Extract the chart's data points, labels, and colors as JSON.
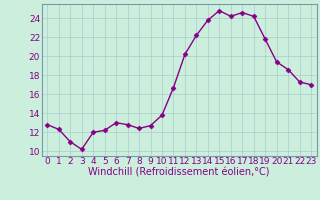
{
  "x": [
    0,
    1,
    2,
    3,
    4,
    5,
    6,
    7,
    8,
    9,
    10,
    11,
    12,
    13,
    14,
    15,
    16,
    17,
    18,
    19,
    20,
    21,
    22,
    23
  ],
  "y": [
    12.8,
    12.3,
    11.0,
    10.2,
    12.0,
    12.2,
    13.0,
    12.8,
    12.4,
    12.7,
    13.8,
    16.7,
    20.2,
    22.2,
    23.8,
    24.8,
    24.2,
    24.6,
    24.2,
    21.8,
    19.4,
    18.6,
    17.3,
    17.0
  ],
  "line_color": "#880088",
  "marker": "D",
  "marker_size": 2.5,
  "bg_color": "#cceedd",
  "grid_color": "#aacccc",
  "xlabel": "Windchill (Refroidissement éolien,°C)",
  "xlim": [
    -0.5,
    23.5
  ],
  "ylim": [
    9.5,
    25.5
  ],
  "yticks": [
    10,
    12,
    14,
    16,
    18,
    20,
    22,
    24
  ],
  "xticks": [
    0,
    1,
    2,
    3,
    4,
    5,
    6,
    7,
    8,
    9,
    10,
    11,
    12,
    13,
    14,
    15,
    16,
    17,
    18,
    19,
    20,
    21,
    22,
    23
  ],
  "font_color": "#880088",
  "tick_label_fontsize": 6.5,
  "xlabel_fontsize": 7.0,
  "spine_color": "#7799aa"
}
